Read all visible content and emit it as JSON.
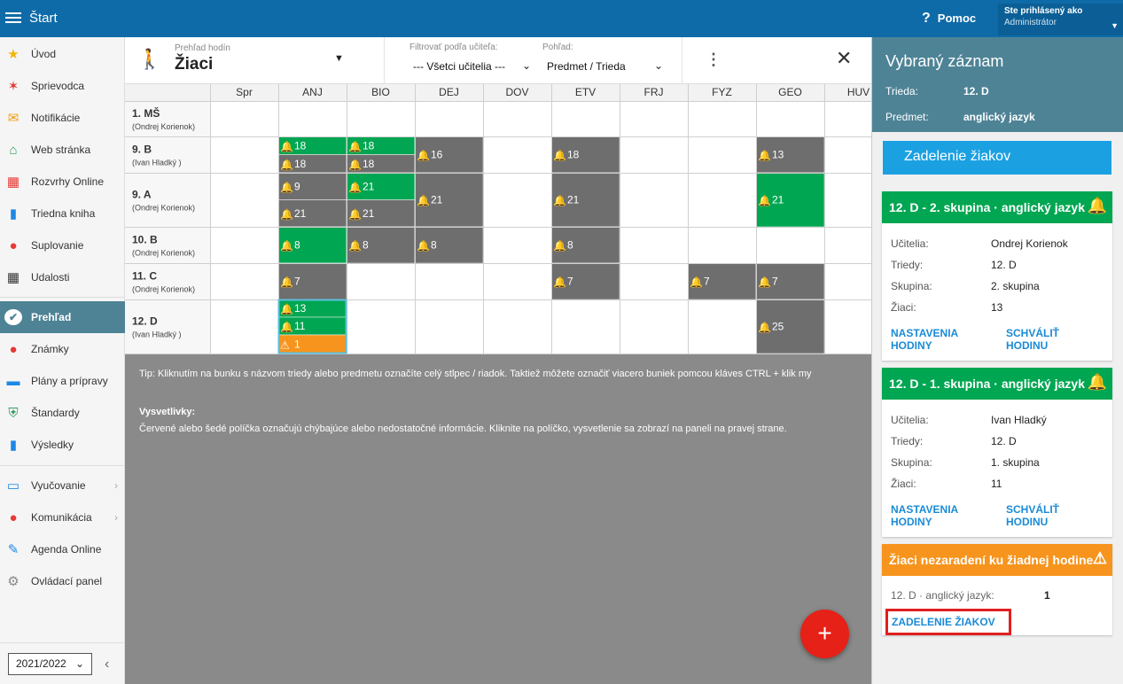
{
  "topbar": {
    "title": "Štart",
    "help": "Pomoc",
    "user_line1": "Ste prihlásený ako",
    "user_line2": "Administrátor"
  },
  "sidebar": {
    "items": [
      {
        "label": "Úvod",
        "icon": "star-icon",
        "color": "#f4b400"
      },
      {
        "label": "Sprievodca",
        "icon": "wand-icon",
        "color": "#e53935"
      },
      {
        "label": "Notifikácie",
        "icon": "envelope-icon",
        "color": "#f59e0b"
      },
      {
        "label": "Web stránka",
        "icon": "home-icon",
        "color": "#2e9e5b"
      },
      {
        "label": "Rozvrhy Online",
        "icon": "calendar-icon",
        "color": "#e53935"
      },
      {
        "label": "Triedna kniha",
        "icon": "book-icon",
        "color": "#1e88e5"
      },
      {
        "label": "Suplovanie",
        "icon": "person-icon",
        "color": "#e53935"
      },
      {
        "label": "Udalosti",
        "icon": "calendar-grid-icon",
        "color": "#333333"
      },
      {
        "label": "Prehľad",
        "icon": "check-circle-icon",
        "color": "#ffffff"
      },
      {
        "label": "Známky",
        "icon": "grade-icon",
        "color": "#e53935"
      },
      {
        "label": "Plány a prípravy",
        "icon": "briefcase-icon",
        "color": "#1e88e5"
      },
      {
        "label": "Štandardy",
        "icon": "shield-check-icon",
        "color": "#2e9e5b"
      },
      {
        "label": "Výsledky",
        "icon": "bar-chart-icon",
        "color": "#1e88e5"
      },
      {
        "label": "Vyučovanie",
        "icon": "open-book-icon",
        "color": "#1e88e5"
      },
      {
        "label": "Komunikácia",
        "icon": "chat-icon",
        "color": "#e53935"
      },
      {
        "label": "Agenda Online",
        "icon": "pen-icon",
        "color": "#1e88e5"
      },
      {
        "label": "Ovládací panel",
        "icon": "gear-icon",
        "color": "#888888"
      }
    ],
    "year": "2021/2022"
  },
  "header": {
    "small": "Prehľad hodín",
    "title": "Žiaci",
    "filter_label": "Filtrovať podľa učiteľa:",
    "filter_value": "--- Všetci učitelia ---",
    "view_label": "Pohľad:",
    "view_value": "Predmet / Trieda"
  },
  "table": {
    "columns": [
      "Spr",
      "ANJ",
      "BIO",
      "DEJ",
      "DOV",
      "ETV",
      "FRJ",
      "FYZ",
      "GEO",
      "HUV"
    ],
    "rows": [
      {
        "name": "1. MŠ",
        "teacher": "(Ondrej Korienok)"
      },
      {
        "name": "9. B",
        "teacher": "(Ivan Hladký )"
      },
      {
        "name": "9. A",
        "teacher": "(Ondrej Korienok)"
      },
      {
        "name": "10. B",
        "teacher": "(Ondrej Korienok)"
      },
      {
        "name": "11. C",
        "teacher": "(Ondrej Korienok)"
      },
      {
        "name": "12. D",
        "teacher": "(Ivan Hladký )"
      }
    ],
    "cells": [
      {
        "row": 1,
        "col": 1,
        "values": [
          {
            "v": "18",
            "s": "g"
          },
          {
            "v": "18",
            "s": "d"
          }
        ]
      },
      {
        "row": 1,
        "col": 2,
        "values": [
          {
            "v": "18",
            "s": "g"
          },
          {
            "v": "18",
            "s": "d"
          }
        ]
      },
      {
        "row": 1,
        "col": 3,
        "values": [
          {
            "v": "16",
            "s": "d"
          }
        ]
      },
      {
        "row": 1,
        "col": 5,
        "values": [
          {
            "v": "18",
            "s": "d"
          }
        ]
      },
      {
        "row": 1,
        "col": 8,
        "values": [
          {
            "v": "13",
            "s": "d"
          }
        ]
      },
      {
        "row": 2,
        "col": 1,
        "values": [
          {
            "v": "9",
            "s": "d"
          },
          {
            "v": "21",
            "s": "d"
          }
        ]
      },
      {
        "row": 2,
        "col": 2,
        "values": [
          {
            "v": "21",
            "s": "g"
          },
          {
            "v": "21",
            "s": "d"
          }
        ]
      },
      {
        "row": 2,
        "col": 3,
        "values": [
          {
            "v": "21",
            "s": "d"
          }
        ]
      },
      {
        "row": 2,
        "col": 5,
        "values": [
          {
            "v": "21",
            "s": "d"
          }
        ]
      },
      {
        "row": 2,
        "col": 8,
        "values": [
          {
            "v": "21",
            "s": "g"
          }
        ]
      },
      {
        "row": 3,
        "col": 1,
        "values": [
          {
            "v": "8",
            "s": "g"
          }
        ]
      },
      {
        "row": 3,
        "col": 2,
        "values": [
          {
            "v": "8",
            "s": "d"
          }
        ]
      },
      {
        "row": 3,
        "col": 3,
        "values": [
          {
            "v": "8",
            "s": "d"
          }
        ]
      },
      {
        "row": 3,
        "col": 5,
        "values": [
          {
            "v": "8",
            "s": "d"
          }
        ]
      },
      {
        "row": 4,
        "col": 1,
        "values": [
          {
            "v": "7",
            "s": "d"
          }
        ]
      },
      {
        "row": 4,
        "col": 5,
        "values": [
          {
            "v": "7",
            "s": "d"
          }
        ]
      },
      {
        "row": 4,
        "col": 7,
        "values": [
          {
            "v": "7",
            "s": "d"
          }
        ]
      },
      {
        "row": 4,
        "col": 8,
        "values": [
          {
            "v": "7",
            "s": "d"
          }
        ]
      },
      {
        "row": 5,
        "col": 1,
        "values": [
          {
            "v": "13",
            "s": "g"
          },
          {
            "v": "11",
            "s": "g"
          },
          {
            "v": "1",
            "s": "o"
          }
        ]
      },
      {
        "row": 5,
        "col": 8,
        "values": [
          {
            "v": "25",
            "s": "d"
          }
        ]
      }
    ],
    "colors": {
      "g": "#00a651",
      "d": "#6e6e6e",
      "o": "#f7941d"
    }
  },
  "tip": "Tip: Kliknutím na bunku s názvom triedy alebo predmetu označíte celý stĺpec / riadok. Taktiež môžete označiť viacero buniek pomcou kláves CTRL + klik my",
  "legend_title": "Vysvetlivky:",
  "legend_text": "Červené alebo šedé políčka označujú chýbajúce alebo nedostatočné informácie. Kliknite na políčko, vysvetlenie sa zobrazí na paneli na pravej strane.",
  "fab": "+",
  "right": {
    "title": "Vybraný záznam",
    "trieda_label": "Trieda:",
    "trieda": "12. D",
    "predmet_label": "Predmet:",
    "predmet": "anglický jazyk",
    "assign_button": "Zadelenie žiakov",
    "cards": [
      {
        "title": "12. D - 2. skupina · anglický jazyk",
        "color": "#00a651",
        "ucitelia": "Ondrej Korienok",
        "triedy": "12. D",
        "skupina": "2. skupina",
        "ziaci": "13"
      },
      {
        "title": "12. D - 1. skupina · anglický jazyk",
        "color": "#00a651",
        "ucitelia": "Ivan Hladký",
        "triedy": "12. D",
        "skupina": "1. skupina",
        "ziaci": "11"
      }
    ],
    "labels": {
      "ucitelia": "Učitelia:",
      "triedy": "Triedy:",
      "skupina": "Skupina:",
      "ziaci": "Žiaci:",
      "settings": "NASTAVENIA HODINY",
      "approve": "SCHVÁLIŤ HODINU"
    },
    "unassigned": {
      "title": "Žiaci nezaradení ku žiadnej hodine",
      "color": "#f7941d",
      "row_label": "12. D · anglický jazyk:",
      "count": "1",
      "link": "ZADELENIE ŽIAKOV",
      "highlight": "#e02020"
    }
  }
}
